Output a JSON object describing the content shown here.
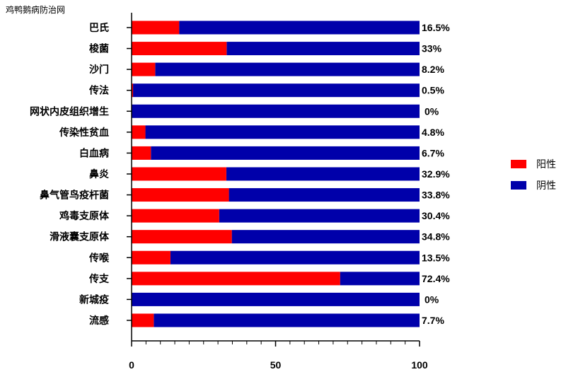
{
  "watermark": "鸡鸭鹅病防治网",
  "chart_data": {
    "type": "bar",
    "orientation": "horizontal",
    "stacked": true,
    "categories": [
      "巴氏",
      "梭菌",
      "沙门",
      "传法",
      "网状内皮组织增生",
      "传染性贫血",
      "白血病",
      "鼻炎",
      "鼻气管鸟疫杆菌",
      "鸡毒支原体",
      "滑液囊支原体",
      "传喉",
      "传支",
      "新城疫",
      "流感"
    ],
    "series": [
      {
        "name": "阳性",
        "color": "#ff0000",
        "values": [
          16.5,
          33,
          8.2,
          0.5,
          0,
          4.8,
          6.7,
          32.9,
          33.8,
          30.4,
          34.8,
          13.5,
          72.4,
          0,
          7.7
        ]
      },
      {
        "name": "阴性",
        "color": "#0000aa",
        "values": [
          83.5,
          67,
          91.8,
          99.5,
          100,
          95.2,
          93.3,
          67.1,
          66.2,
          69.6,
          65.2,
          86.5,
          27.6,
          100,
          92.3
        ]
      }
    ],
    "data_labels": [
      "16.5%",
      "33%",
      "8.2%",
      "0.5%",
      "0%",
      "4.8%",
      "6.7%",
      "32.9%",
      "33.8%",
      "30.4%",
      "34.8%",
      "13.5%",
      "72.4%",
      "0%",
      "7.7%"
    ],
    "xlim": [
      0,
      100
    ],
    "xticks": [
      "0",
      "50",
      "100"
    ],
    "legend_position": "right"
  }
}
